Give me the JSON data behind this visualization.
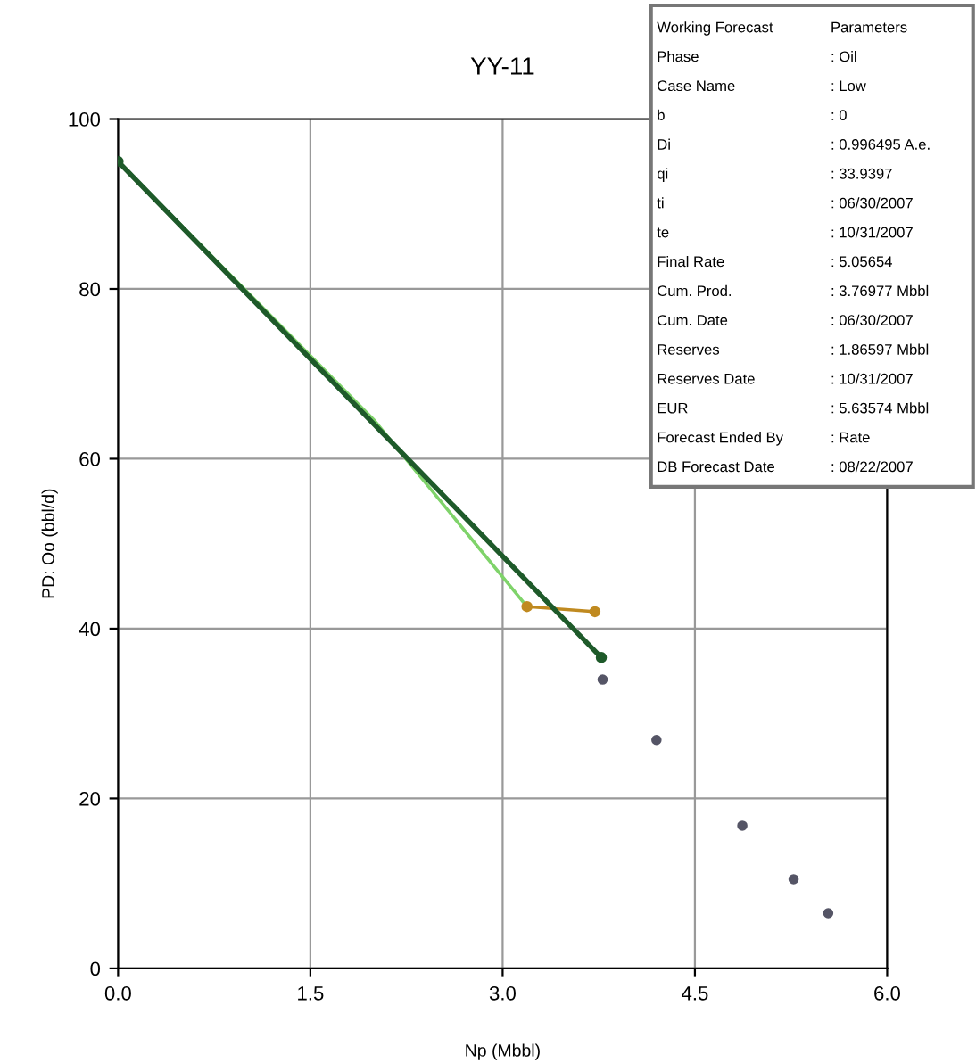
{
  "chart_data": {
    "type": "line",
    "title": "YY-11",
    "xlabel": "Np (Mbbl)",
    "ylabel": "PD: Oo (bbl/d)",
    "xlim": [
      0,
      6
    ],
    "ylim": [
      0,
      100
    ],
    "xticks": [
      {
        "value": 0,
        "label": "0.0"
      },
      {
        "value": 1.5,
        "label": "1.5"
      },
      {
        "value": 3,
        "label": "3.0"
      },
      {
        "value": 4.5,
        "label": "4.5"
      },
      {
        "value": 6,
        "label": "6.0"
      }
    ],
    "yticks": [
      0,
      20,
      40,
      60,
      80,
      100
    ],
    "grid": true,
    "series": [
      {
        "color": "#7fd36a",
        "x": [
          0,
          2.0,
          3.19
        ],
        "values": [
          95,
          64.5,
          42.6
        ],
        "marker": "none"
      },
      {
        "color": "#c08a20",
        "x": [
          3.19,
          3.72
        ],
        "values": [
          42.6,
          42.0
        ],
        "marker": "circle"
      },
      {
        "color": "#1e5a2a",
        "x": [
          0,
          3.77
        ],
        "values": [
          95,
          36.6
        ],
        "marker": "circle"
      },
      {
        "type": "scatter",
        "color": "#555566",
        "x": [
          3.78,
          4.2,
          4.87,
          5.27,
          5.54
        ],
        "values": [
          34.0,
          26.9,
          16.8,
          10.5,
          6.5
        ],
        "marker": "circle"
      }
    ],
    "annotations": [
      "Working Forecast",
      "Parameters",
      "Phase",
      ": Oil",
      "Case Name",
      ": Low",
      "b",
      ": 0",
      "Di",
      ": 0.996495 A.e.",
      "qi",
      ": 33.9397",
      "ti",
      ": 06/30/2007",
      "te",
      ": 10/31/2007",
      "Final Rate",
      ": 5.05654",
      "Cum. Prod.",
      ": 3.76977 Mbbl",
      "Cum. Date",
      ": 06/30/2007",
      "Reserves",
      ": 1.86597 Mbbl",
      "Reserves Date",
      ": 10/31/2007",
      "EUR",
      ": 5.63574 Mbbl",
      "Forecast Ended By",
      ": Rate",
      "DB Forecast Date",
      ": 08/22/2007"
    ]
  }
}
